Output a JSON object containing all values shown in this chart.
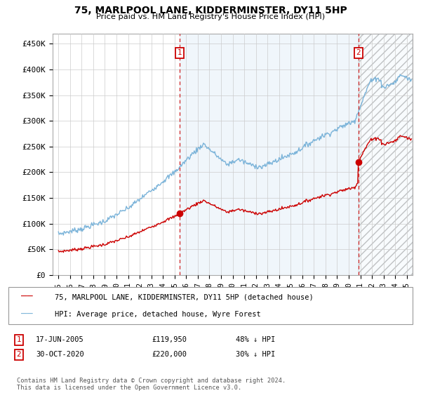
{
  "title": "75, MARLPOOL LANE, KIDDERMINSTER, DY11 5HP",
  "subtitle": "Price paid vs. HM Land Registry's House Price Index (HPI)",
  "ylabel_ticks": [
    "£0",
    "£50K",
    "£100K",
    "£150K",
    "£200K",
    "£250K",
    "£300K",
    "£350K",
    "£400K",
    "£450K"
  ],
  "ytick_values": [
    0,
    50000,
    100000,
    150000,
    200000,
    250000,
    300000,
    350000,
    400000,
    450000
  ],
  "ylim": [
    0,
    470000
  ],
  "xlim_start": 1994.5,
  "xlim_end": 2025.5,
  "hpi_color": "#7ab3d9",
  "property_color": "#cc0000",
  "vline_color": "#cc0000",
  "grid_color": "#cccccc",
  "fill_color": "#d6e8f5",
  "sale1_x": 2005.46,
  "sale1_y": 119950,
  "sale2_x": 2020.83,
  "sale2_y": 220000,
  "annotation1": {
    "label": "1",
    "date": "17-JUN-2005",
    "price": "£119,950",
    "note": "48% ↓ HPI"
  },
  "annotation2": {
    "label": "2",
    "date": "30-OCT-2020",
    "price": "£220,000",
    "note": "30% ↓ HPI"
  },
  "legend_property": "75, MARLPOOL LANE, KIDDERMINSTER, DY11 5HP (detached house)",
  "legend_hpi": "HPI: Average price, detached house, Wyre Forest",
  "footer": "Contains HM Land Registry data © Crown copyright and database right 2024.\nThis data is licensed under the Open Government Licence v3.0.",
  "xtick_years": [
    1995,
    1996,
    1997,
    1998,
    1999,
    2000,
    2001,
    2002,
    2003,
    2004,
    2005,
    2006,
    2007,
    2008,
    2009,
    2010,
    2011,
    2012,
    2013,
    2014,
    2015,
    2016,
    2017,
    2018,
    2019,
    2020,
    2021,
    2022,
    2023,
    2024,
    2025
  ]
}
